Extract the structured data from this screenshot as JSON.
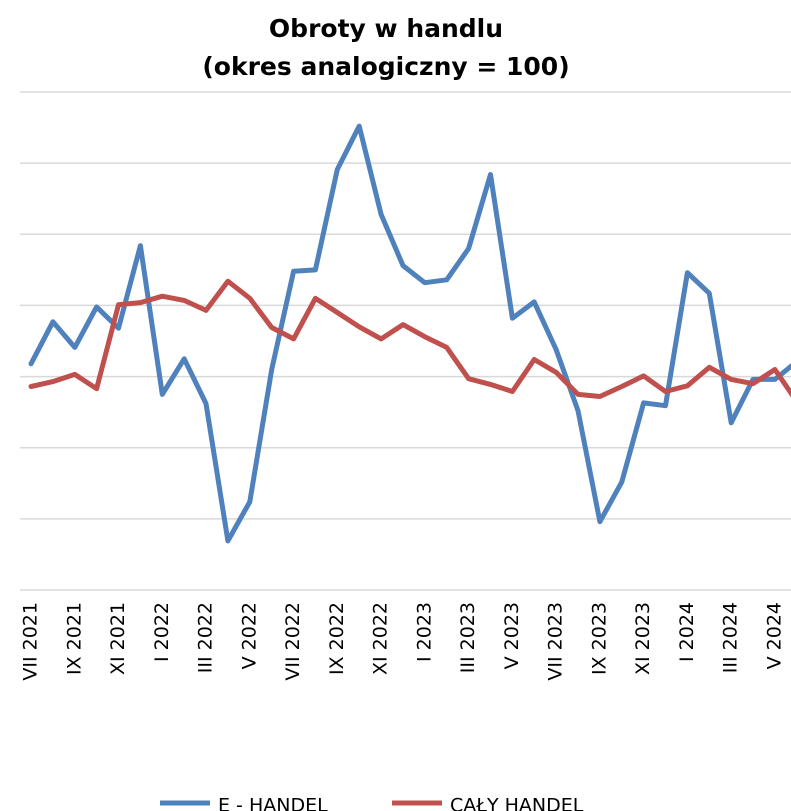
{
  "chart_data": {
    "type": "line",
    "title": [
      "Obroty w handlu",
      "(okres analogiczny = 100)"
    ],
    "categories": [
      "VII 2021",
      null,
      "IX 2021",
      null,
      "XI 2021",
      null,
      "I 2022",
      null,
      "III 2022",
      null,
      "V 2022",
      null,
      "VII 2022",
      null,
      "IX 2022",
      null,
      "XI 2022",
      null,
      "I 2023",
      null,
      "III 2023",
      null,
      "V 2023",
      null,
      "VII 2023",
      null,
      "IX 2023",
      null,
      "XI 2023",
      null,
      "I 2024",
      null,
      "III 2024",
      null,
      "V 2024",
      null
    ],
    "series": [
      {
        "name": "E - HANDEL",
        "color": "#4f81bd",
        "values": [
          101.8,
          107.7,
          104.1,
          109.8,
          106.8,
          118.4,
          97.5,
          102.5,
          96.2,
          76.9,
          82.4,
          101.0,
          114.8,
          115.0,
          129.1,
          135.2,
          122.8,
          115.6,
          113.2,
          113.6,
          118.0,
          128.4,
          108.2,
          110.5,
          103.8,
          95.2,
          79.6,
          85.2,
          96.3,
          95.9,
          114.6,
          111.7,
          93.5,
          99.6,
          99.6,
          102.1
        ]
      },
      {
        "name": "CAŁY HANDEL",
        "color": "#c0504d",
        "values": [
          98.6,
          99.3,
          100.3,
          98.3,
          110.1,
          110.4,
          111.3,
          110.7,
          109.3,
          113.4,
          111.0,
          106.9,
          105.3,
          111.0,
          109.0,
          107.0,
          105.3,
          107.3,
          105.6,
          104.1,
          99.7,
          98.9,
          97.9,
          102.4,
          100.6,
          97.5,
          97.2,
          98.6,
          100.1,
          97.9,
          98.7,
          101.3,
          99.6,
          99.0,
          101.0,
          96.5
        ]
      }
    ],
    "ylim": [
      70,
      140
    ],
    "yticks": [
      70,
      80,
      90,
      100,
      110,
      120,
      130,
      140
    ],
    "grid": true
  }
}
